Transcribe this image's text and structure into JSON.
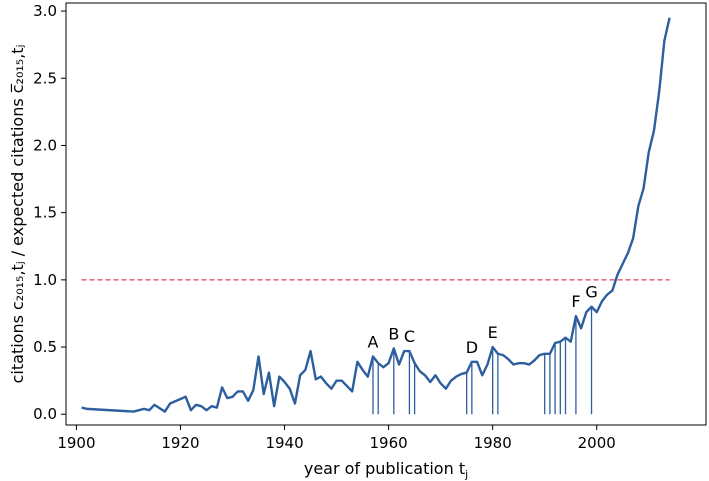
{
  "chart_data": {
    "type": "line",
    "xlabel_prefix": "year of publication t",
    "xlabel_sub": "j",
    "ylabel": "citations c₂₀₁₅,tⱼ / expected citations c̅₂₀₁₅,tⱼ",
    "xlim": [
      1898,
      2021
    ],
    "ylim": [
      -0.08,
      3.06
    ],
    "xticks": [
      1900,
      1920,
      1940,
      1960,
      1980,
      2000
    ],
    "yticks": [
      0.0,
      0.5,
      1.0,
      1.5,
      2.0,
      2.5,
      3.0
    ],
    "xtick_labels": [
      "1900",
      "1920",
      "1940",
      "1960",
      "1980",
      "2000"
    ],
    "ytick_labels": [
      "0.0",
      "0.5",
      "1.0",
      "1.5",
      "2.0",
      "2.5",
      "3.0"
    ],
    "series": [
      {
        "color": "#2d5e9e",
        "x": [
          1901,
          1902,
          1911,
          1912,
          1913,
          1914,
          1915,
          1917,
          1918,
          1921,
          1922,
          1923,
          1924,
          1925,
          1926,
          1927,
          1928,
          1929,
          1930,
          1931,
          1932,
          1933,
          1934,
          1935,
          1936,
          1937,
          1938,
          1939,
          1940,
          1941,
          1942,
          1943,
          1944,
          1945,
          1946,
          1947,
          1948,
          1949,
          1950,
          1951,
          1952,
          1953,
          1954,
          1955,
          1956,
          1957,
          1958,
          1959,
          1960,
          1961,
          1962,
          1963,
          1964,
          1965,
          1966,
          1967,
          1968,
          1969,
          1970,
          1971,
          1972,
          1973,
          1974,
          1975,
          1976,
          1977,
          1978,
          1979,
          1980,
          1981,
          1982,
          1983,
          1984,
          1985,
          1986,
          1987,
          1988,
          1989,
          1990,
          1991,
          1992,
          1993,
          1994,
          1995,
          1996,
          1997,
          1998,
          1999,
          2000,
          2001,
          2002,
          2003,
          2004,
          2005,
          2006,
          2007,
          2008,
          2009,
          2010,
          2011,
          2012,
          2013,
          2014
        ],
        "values": [
          0.05,
          0.04,
          0.02,
          0.03,
          0.04,
          0.03,
          0.07,
          0.02,
          0.08,
          0.13,
          0.03,
          0.07,
          0.06,
          0.03,
          0.06,
          0.05,
          0.2,
          0.12,
          0.13,
          0.17,
          0.17,
          0.1,
          0.18,
          0.43,
          0.15,
          0.31,
          0.06,
          0.28,
          0.24,
          0.19,
          0.08,
          0.29,
          0.33,
          0.47,
          0.26,
          0.28,
          0.23,
          0.19,
          0.25,
          0.25,
          0.21,
          0.17,
          0.39,
          0.33,
          0.28,
          0.43,
          0.38,
          0.35,
          0.38,
          0.49,
          0.37,
          0.47,
          0.47,
          0.38,
          0.32,
          0.29,
          0.24,
          0.29,
          0.23,
          0.19,
          0.25,
          0.28,
          0.3,
          0.31,
          0.39,
          0.39,
          0.29,
          0.37,
          0.5,
          0.45,
          0.44,
          0.41,
          0.37,
          0.38,
          0.38,
          0.37,
          0.4,
          0.44,
          0.45,
          0.45,
          0.53,
          0.54,
          0.57,
          0.54,
          0.73,
          0.64,
          0.76,
          0.8,
          0.76,
          0.84,
          0.89,
          0.92,
          1.04,
          1.12,
          1.2,
          1.31,
          1.55,
          1.68,
          1.95,
          2.11,
          2.4,
          2.78,
          2.95
        ]
      }
    ],
    "reference_line": {
      "y": 1.0,
      "x_range": [
        1901,
        2014
      ],
      "style": "dashed",
      "color": "#e0435a"
    },
    "stems": {
      "color": "#2d5e9e",
      "x": [
        1957,
        1958,
        1961,
        1964,
        1965,
        1975,
        1976,
        1980,
        1981,
        1990,
        1991,
        1992,
        1993,
        1994,
        1996,
        1999
      ]
    },
    "annotations": [
      {
        "label": "A",
        "x": 1957,
        "y": 0.43
      },
      {
        "label": "B",
        "x": 1961,
        "y": 0.49
      },
      {
        "label": "C",
        "x": 1964,
        "y": 0.47
      },
      {
        "label": "D",
        "x": 1976,
        "y": 0.39
      },
      {
        "label": "E",
        "x": 1980,
        "y": 0.5
      },
      {
        "label": "F",
        "x": 1996,
        "y": 0.73
      },
      {
        "label": "G",
        "x": 1999,
        "y": 0.8
      }
    ],
    "grid": false,
    "legend": "none"
  }
}
